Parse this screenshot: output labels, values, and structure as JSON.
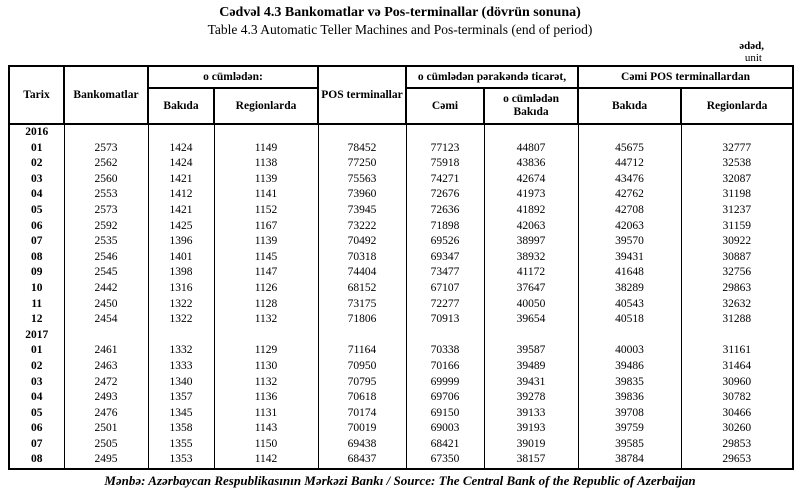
{
  "title": {
    "az": "Cədvəl 4.3 Bankomatlar və Pos-terminallar (dövrün sonuna)",
    "en": "Table 4.3 Automatic Teller Machines and Pos-terminals (end of period)"
  },
  "unit": {
    "az": "ədəd,",
    "en": "unit"
  },
  "source": "Mənbə: Azərbaycan Respublikasının Mərkəzi Bankı / Source: The Central Bank of the Republic of Azerbaijan",
  "table": {
    "header": {
      "tarix": "Tarix",
      "bankomatlar": "Bankomatlar",
      "atm_group": "o cümlədən:",
      "atm_baku": "Bakıda",
      "atm_regions": "Regionlarda",
      "pos": "POS terminallar",
      "retail_group": "o cümlədən pərakəndə ticarət,",
      "retail_total": "Cəmi",
      "retail_baku": "o cümlədən Bakıda",
      "pos_group": "Cəmi POS terminallardan",
      "pos_baku": "Bakıda",
      "pos_regions": "Regionlarda"
    },
    "sections": [
      {
        "year": "2016",
        "rows": [
          [
            "01",
            "2573",
            "1424",
            "1149",
            "78452",
            "77123",
            "44807",
            "45675",
            "32777"
          ],
          [
            "02",
            "2562",
            "1424",
            "1138",
            "77250",
            "75918",
            "43836",
            "44712",
            "32538"
          ],
          [
            "03",
            "2560",
            "1421",
            "1139",
            "75563",
            "74271",
            "42674",
            "43476",
            "32087"
          ],
          [
            "04",
            "2553",
            "1412",
            "1141",
            "73960",
            "72676",
            "41973",
            "42762",
            "31198"
          ],
          [
            "05",
            "2573",
            "1421",
            "1152",
            "73945",
            "72636",
            "41892",
            "42708",
            "31237"
          ],
          [
            "06",
            "2592",
            "1425",
            "1167",
            "73222",
            "71898",
            "42063",
            "42063",
            "31159"
          ],
          [
            "07",
            "2535",
            "1396",
            "1139",
            "70492",
            "69526",
            "38997",
            "39570",
            "30922"
          ],
          [
            "08",
            "2546",
            "1401",
            "1145",
            "70318",
            "69347",
            "38932",
            "39431",
            "30887"
          ],
          [
            "09",
            "2545",
            "1398",
            "1147",
            "74404",
            "73477",
            "41172",
            "41648",
            "32756"
          ],
          [
            "10",
            "2442",
            "1316",
            "1126",
            "68152",
            "67107",
            "37647",
            "38289",
            "29863"
          ],
          [
            "11",
            "2450",
            "1322",
            "1128",
            "73175",
            "72277",
            "40050",
            "40543",
            "32632"
          ],
          [
            "12",
            "2454",
            "1322",
            "1132",
            "71806",
            "70913",
            "39654",
            "40518",
            "31288"
          ]
        ]
      },
      {
        "year": "2017",
        "rows": [
          [
            "01",
            "2461",
            "1332",
            "1129",
            "71164",
            "70338",
            "39587",
            "40003",
            "31161"
          ],
          [
            "02",
            "2463",
            "1333",
            "1130",
            "70950",
            "70166",
            "39489",
            "39486",
            "31464"
          ],
          [
            "03",
            "2472",
            "1340",
            "1132",
            "70795",
            "69999",
            "39431",
            "39835",
            "30960"
          ],
          [
            "04",
            "2493",
            "1357",
            "1136",
            "70618",
            "69706",
            "39278",
            "39836",
            "30782"
          ],
          [
            "05",
            "2476",
            "1345",
            "1131",
            "70174",
            "69150",
            "39133",
            "39708",
            "30466"
          ],
          [
            "06",
            "2501",
            "1358",
            "1143",
            "70019",
            "69003",
            "39193",
            "39759",
            "30260"
          ],
          [
            "07",
            "2505",
            "1355",
            "1150",
            "69438",
            "68421",
            "39019",
            "39585",
            "29853"
          ],
          [
            "08",
            "2495",
            "1353",
            "1142",
            "68437",
            "67350",
            "38157",
            "38784",
            "29653"
          ]
        ]
      }
    ]
  }
}
